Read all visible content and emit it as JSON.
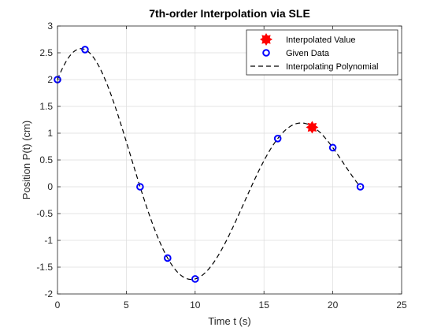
{
  "chart_data": {
    "type": "line",
    "title": "7th-order Interpolation via SLE",
    "xlabel": "Time t (s)",
    "ylabel": "Position P(t) (cm)",
    "xlim": [
      0,
      25
    ],
    "ylim": [
      -2,
      3
    ],
    "xticks": [
      0,
      5,
      10,
      15,
      20,
      25
    ],
    "yticks": [
      -2,
      -1.5,
      -1,
      -0.5,
      0,
      0.5,
      1,
      1.5,
      2,
      2.5,
      3
    ],
    "grid": true,
    "legend_position": "top-right",
    "series": [
      {
        "name": "Interpolated Value",
        "kind": "marker-star",
        "color": "#ff0000",
        "x": [
          18.5
        ],
        "y": [
          1.11
        ]
      },
      {
        "name": "Given Data",
        "kind": "marker-circle",
        "color": "#0000ff",
        "x": [
          0,
          2,
          6,
          8,
          10,
          16,
          20,
          22
        ],
        "y": [
          2,
          2.56,
          0,
          -1.33,
          -1.72,
          0.9,
          0.73,
          0
        ]
      },
      {
        "name": "Interpolating Polynomial",
        "kind": "dashed-line",
        "color": "#000000",
        "x": [
          0,
          2,
          6,
          8,
          10,
          16,
          20,
          22
        ],
        "y": [
          2,
          2.56,
          0,
          -1.33,
          -1.72,
          0.9,
          0.73,
          0
        ]
      }
    ]
  }
}
